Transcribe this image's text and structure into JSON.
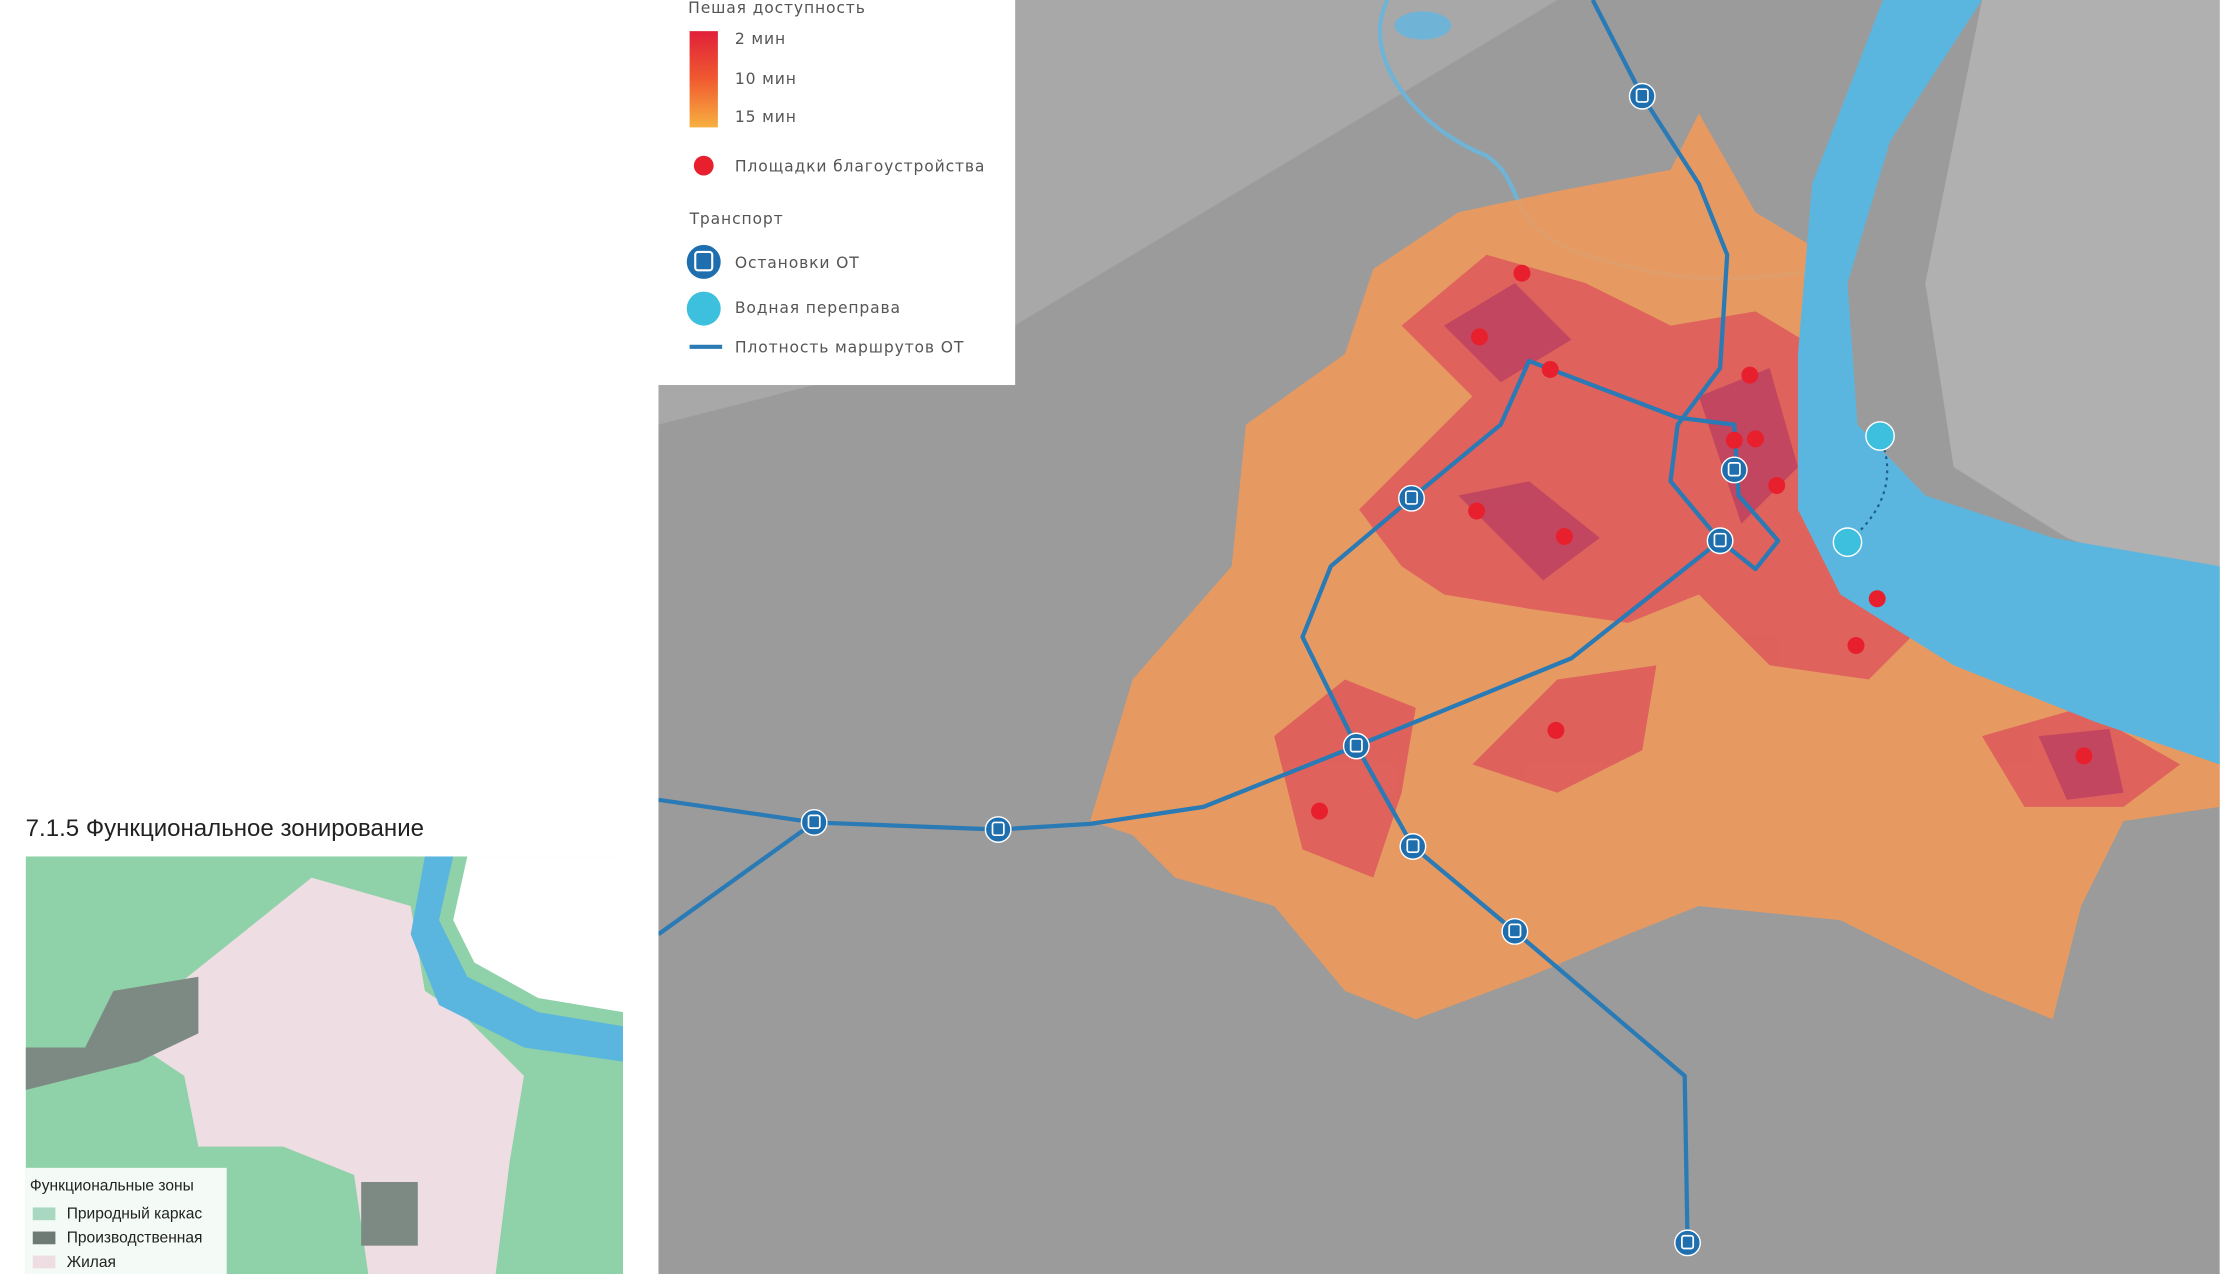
{
  "legend": {
    "title": "Пешая доступность",
    "gradient_labels": [
      "2 мин",
      "10 мин",
      "15 мин"
    ],
    "sites": "Площадки благоустройства",
    "transport_title": "Транспорт",
    "items": [
      "Остановки ОТ",
      "Водная переправа",
      "Плотность маршрутов ОТ"
    ]
  },
  "inset": {
    "title": "7.1.5 Функциональное зонирование",
    "legend_title": "Функциональные зоны",
    "zones": [
      "Природный каркас",
      "Производственная",
      "Жилая"
    ]
  }
}
